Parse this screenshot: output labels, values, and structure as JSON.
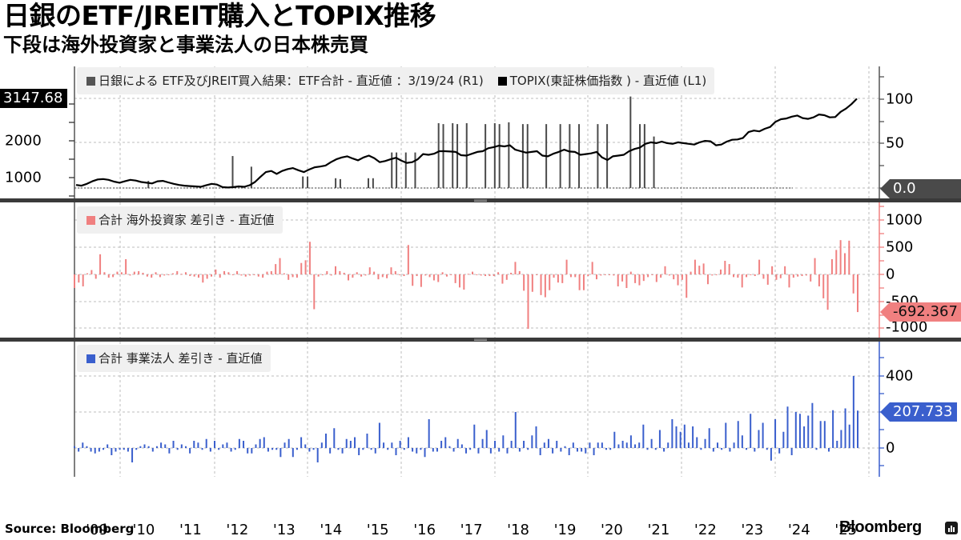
{
  "header": {
    "title": "日銀のETF/JREIT購入とTOPIX推移",
    "subtitle": "下段は海外投資家と事業法人の日本株売買"
  },
  "footer": {
    "source": "Source: Bloomberg",
    "brand": "Bloomberg"
  },
  "colors": {
    "topix_line": "#000000",
    "etf_bars": "#4a4a4a",
    "foreign_bars": "#f08080",
    "corp_bars": "#3a5fcd",
    "grid": "#bdbdbd",
    "legend_bg": "#f0f0f0",
    "separator": "#3a3a3a"
  },
  "panels": {
    "top": {
      "legend": [
        {
          "swatch": "#555555",
          "label": "日銀による ETF及びJREIT買入結果：ETF合計  - 直近値 ：3/19/24 (R1)"
        },
        {
          "swatch": "#000000",
          "label": "TOPIX(東証株価指数 ) - 直近値 (L1)"
        }
      ],
      "left_axis": {
        "ticks": [
          "1000",
          "2000"
        ],
        "last_value": "3147.68"
      },
      "right_axis": {
        "ticks": [
          "100",
          "50"
        ],
        "last_value": "0.0"
      }
    },
    "middle": {
      "legend": [
        {
          "swatch": "#f08080",
          "label": "合計  海外投資家  差引き  - 直近値"
        }
      ],
      "right_axis": {
        "ticks": [
          "1000",
          "500",
          "0",
          "-500",
          "-1000"
        ],
        "last_value": "-692.367"
      }
    },
    "bottom": {
      "legend": [
        {
          "swatch": "#3a5fcd",
          "label": "合計  事業法人  差引き  - 直近値"
        }
      ],
      "right_axis": {
        "ticks": [
          "400",
          "0"
        ],
        "last_value": "207.733"
      }
    }
  },
  "x_axis": {
    "labels": [
      "'09",
      "'10",
      "'11",
      "'12",
      "'13",
      "'14",
      "'15",
      "'16",
      "'17",
      "'18",
      "'19",
      "'20",
      "'21",
      "'22",
      "'23",
      "'24",
      "'25"
    ]
  },
  "chart_data": [
    {
      "type": "line",
      "title": "TOPIX(東証株価指数) - 直近値 (L1)",
      "ylabel": "TOPIX",
      "ylim": [
        700,
        3300
      ],
      "x_start": 2009.0,
      "x_end": 2025.2,
      "values": [
        800,
        780,
        830,
        900,
        950,
        960,
        940,
        890,
        860,
        900,
        940,
        920,
        880,
        860,
        840,
        900,
        910,
        870,
        830,
        800,
        780,
        770,
        760,
        750,
        790,
        830,
        810,
        740,
        730,
        740,
        760,
        750,
        790,
        880,
        1020,
        1150,
        1180,
        1100,
        1180,
        1230,
        1260,
        1200,
        1150,
        1220,
        1280,
        1300,
        1330,
        1420,
        1500,
        1550,
        1580,
        1520,
        1470,
        1550,
        1600,
        1530,
        1420,
        1450,
        1500,
        1540,
        1460,
        1400,
        1420,
        1500,
        1640,
        1620,
        1650,
        1720,
        1720,
        1710,
        1700,
        1610,
        1600,
        1650,
        1700,
        1720,
        1800,
        1830,
        1870,
        1850,
        1880,
        1760,
        1720,
        1680,
        1700,
        1720,
        1600,
        1580,
        1650,
        1700,
        1760,
        1710,
        1700,
        1620,
        1640,
        1660,
        1700,
        1550,
        1480,
        1580,
        1600,
        1620,
        1720,
        1780,
        1820,
        1920,
        1960,
        1940,
        1980,
        1940,
        1920,
        1960,
        1940,
        1920,
        1900,
        1960,
        2000,
        1990,
        1880,
        1900,
        1980,
        2030,
        2040,
        2080,
        2240,
        2280,
        2260,
        2330,
        2380,
        2520,
        2590,
        2610,
        2660,
        2690,
        2620,
        2600,
        2640,
        2720,
        2700,
        2640,
        2650,
        2790,
        2880,
        3000,
        3147.68
      ]
    },
    {
      "type": "bar",
      "title": "日銀による ETF及びJREIT買入結果：ETF合計 - 直近値：3/19/24 (R1)",
      "ylabel": "R1",
      "ylim": [
        0,
        100
      ],
      "note": "spikes (x in year units, y in R1 units)",
      "points": [
        [
          2010.1,
          8
        ],
        [
          2011.9,
          36
        ],
        [
          2012.3,
          24
        ],
        [
          2013.4,
          13
        ],
        [
          2013.5,
          13
        ],
        [
          2014.1,
          11
        ],
        [
          2014.2,
          10
        ],
        [
          2014.8,
          11
        ],
        [
          2014.9,
          11
        ],
        [
          2015.3,
          40
        ],
        [
          2015.4,
          40
        ],
        [
          2015.6,
          40
        ],
        [
          2015.8,
          40
        ],
        [
          2016.3,
          73
        ],
        [
          2016.4,
          72
        ],
        [
          2016.6,
          73
        ],
        [
          2016.7,
          72
        ],
        [
          2016.9,
          73
        ],
        [
          2017.3,
          72
        ],
        [
          2017.5,
          73
        ],
        [
          2017.6,
          72
        ],
        [
          2017.8,
          74
        ],
        [
          2018.1,
          72
        ],
        [
          2018.2,
          72
        ],
        [
          2018.6,
          72
        ],
        [
          2018.9,
          72
        ],
        [
          2019.1,
          72
        ],
        [
          2019.3,
          72
        ],
        [
          2019.7,
          72
        ],
        [
          2019.9,
          72
        ],
        [
          2020.4,
          103
        ],
        [
          2020.6,
          72
        ],
        [
          2020.7,
          72
        ],
        [
          2020.9,
          58
        ]
      ]
    },
    {
      "type": "bar",
      "title": "合計 海外投資家 差引き - 直近値",
      "ylim": [
        -1100,
        1150
      ],
      "yticks": [
        1000,
        500,
        0,
        -500,
        -1000
      ],
      "last_value": -692.367,
      "values": [
        -250,
        -150,
        -220,
        20,
        80,
        -80,
        370,
        40,
        -60,
        -50,
        50,
        40,
        280,
        -20,
        50,
        60,
        30,
        -40,
        -60,
        40,
        -50,
        -20,
        -10,
        20,
        60,
        10,
        40,
        -30,
        -40,
        -60,
        -150,
        -80,
        -40,
        90,
        -60,
        60,
        40,
        -10,
        60,
        -20,
        -40,
        -20,
        -10,
        -40,
        -60,
        50,
        60,
        190,
        300,
        20,
        -100,
        -50,
        -60,
        210,
        260,
        600,
        -640,
        -40,
        -15,
        60,
        -20,
        150,
        60,
        30,
        -110,
        -60,
        40,
        -40,
        -20,
        130,
        50,
        -90,
        -50,
        -70,
        130,
        60,
        -10,
        -30,
        540,
        -210,
        -30,
        -230,
        -20,
        -50,
        -110,
        -140,
        40,
        -40,
        -10,
        -160,
        -240,
        -280,
        10,
        50,
        -10,
        -20,
        -30,
        -30,
        -30,
        40,
        -170,
        -100,
        30,
        230,
        60,
        -300,
        -1000,
        -320,
        -10,
        -380,
        -420,
        -290,
        -60,
        -150,
        -160,
        270,
        -50,
        -50,
        -290,
        -290,
        -30,
        230,
        -90,
        -20,
        -10,
        -10,
        -20,
        -220,
        -130,
        -250,
        50,
        -160,
        -200,
        -120,
        -50,
        -10,
        -140,
        -60,
        150,
        -20,
        -90,
        -200,
        -100,
        -430,
        50,
        270,
        160,
        200,
        -180,
        -20,
        -10,
        90,
        250,
        190,
        -50,
        -60,
        -240,
        -50,
        -10,
        -30,
        270,
        -80,
        -190,
        150,
        -100,
        -70,
        150,
        -240,
        -60,
        -40,
        -30,
        -20,
        -130,
        300,
        -220,
        -440,
        -650,
        280,
        450,
        630,
        390,
        620,
        -350,
        -692.367
      ]
    },
    {
      "type": "bar",
      "title": "合計 事業法人 差引き - 直近値",
      "ylim": [
        -150,
        570
      ],
      "yticks": [
        400,
        0
      ],
      "last_value": 207.733,
      "values": [
        10,
        -20,
        30,
        10,
        -20,
        -30,
        -20,
        -10,
        20,
        -40,
        -20,
        -10,
        -10,
        -20,
        -80,
        -10,
        10,
        20,
        10,
        -20,
        10,
        30,
        20,
        -30,
        40,
        -10,
        20,
        10,
        -30,
        40,
        30,
        -10,
        50,
        -20,
        40,
        -10,
        20,
        30,
        -20,
        -10,
        50,
        40,
        -30,
        -30,
        20,
        50,
        60,
        -20,
        -10,
        -10,
        -50,
        30,
        50,
        -50,
        -10,
        60,
        20,
        -20,
        -10,
        -80,
        30,
        80,
        -30,
        110,
        -10,
        -30,
        50,
        40,
        60,
        -40,
        -10,
        80,
        -10,
        -30,
        140,
        30,
        -10,
        30,
        -40,
        40,
        -10,
        60,
        -20,
        -30,
        -10,
        -50,
        160,
        -20,
        -20,
        40,
        60,
        10,
        -20,
        50,
        20,
        -30,
        -10,
        130,
        -30,
        50,
        100,
        -30,
        40,
        -20,
        70,
        -30,
        40,
        200,
        -20,
        40,
        -10,
        70,
        120,
        -40,
        30,
        50,
        -30,
        40,
        -20,
        10,
        -40,
        30,
        -20,
        -20,
        -30,
        30,
        -40,
        30,
        30,
        -10,
        -10,
        90,
        20,
        40,
        30,
        70,
        20,
        30,
        130,
        -10,
        50,
        -10,
        100,
        -20,
        30,
        160,
        120,
        90,
        130,
        30,
        120,
        60,
        -10,
        50,
        110,
        -20,
        30,
        -10,
        140,
        -20,
        30,
        150,
        70,
        -10,
        190,
        -20,
        100,
        140,
        -10,
        -70,
        160,
        -30,
        90,
        230,
        -40,
        200,
        190,
        120,
        180,
        250,
        -10,
        150,
        150,
        -20,
        210,
        40,
        100,
        220,
        130,
        400,
        207.733
      ]
    }
  ]
}
